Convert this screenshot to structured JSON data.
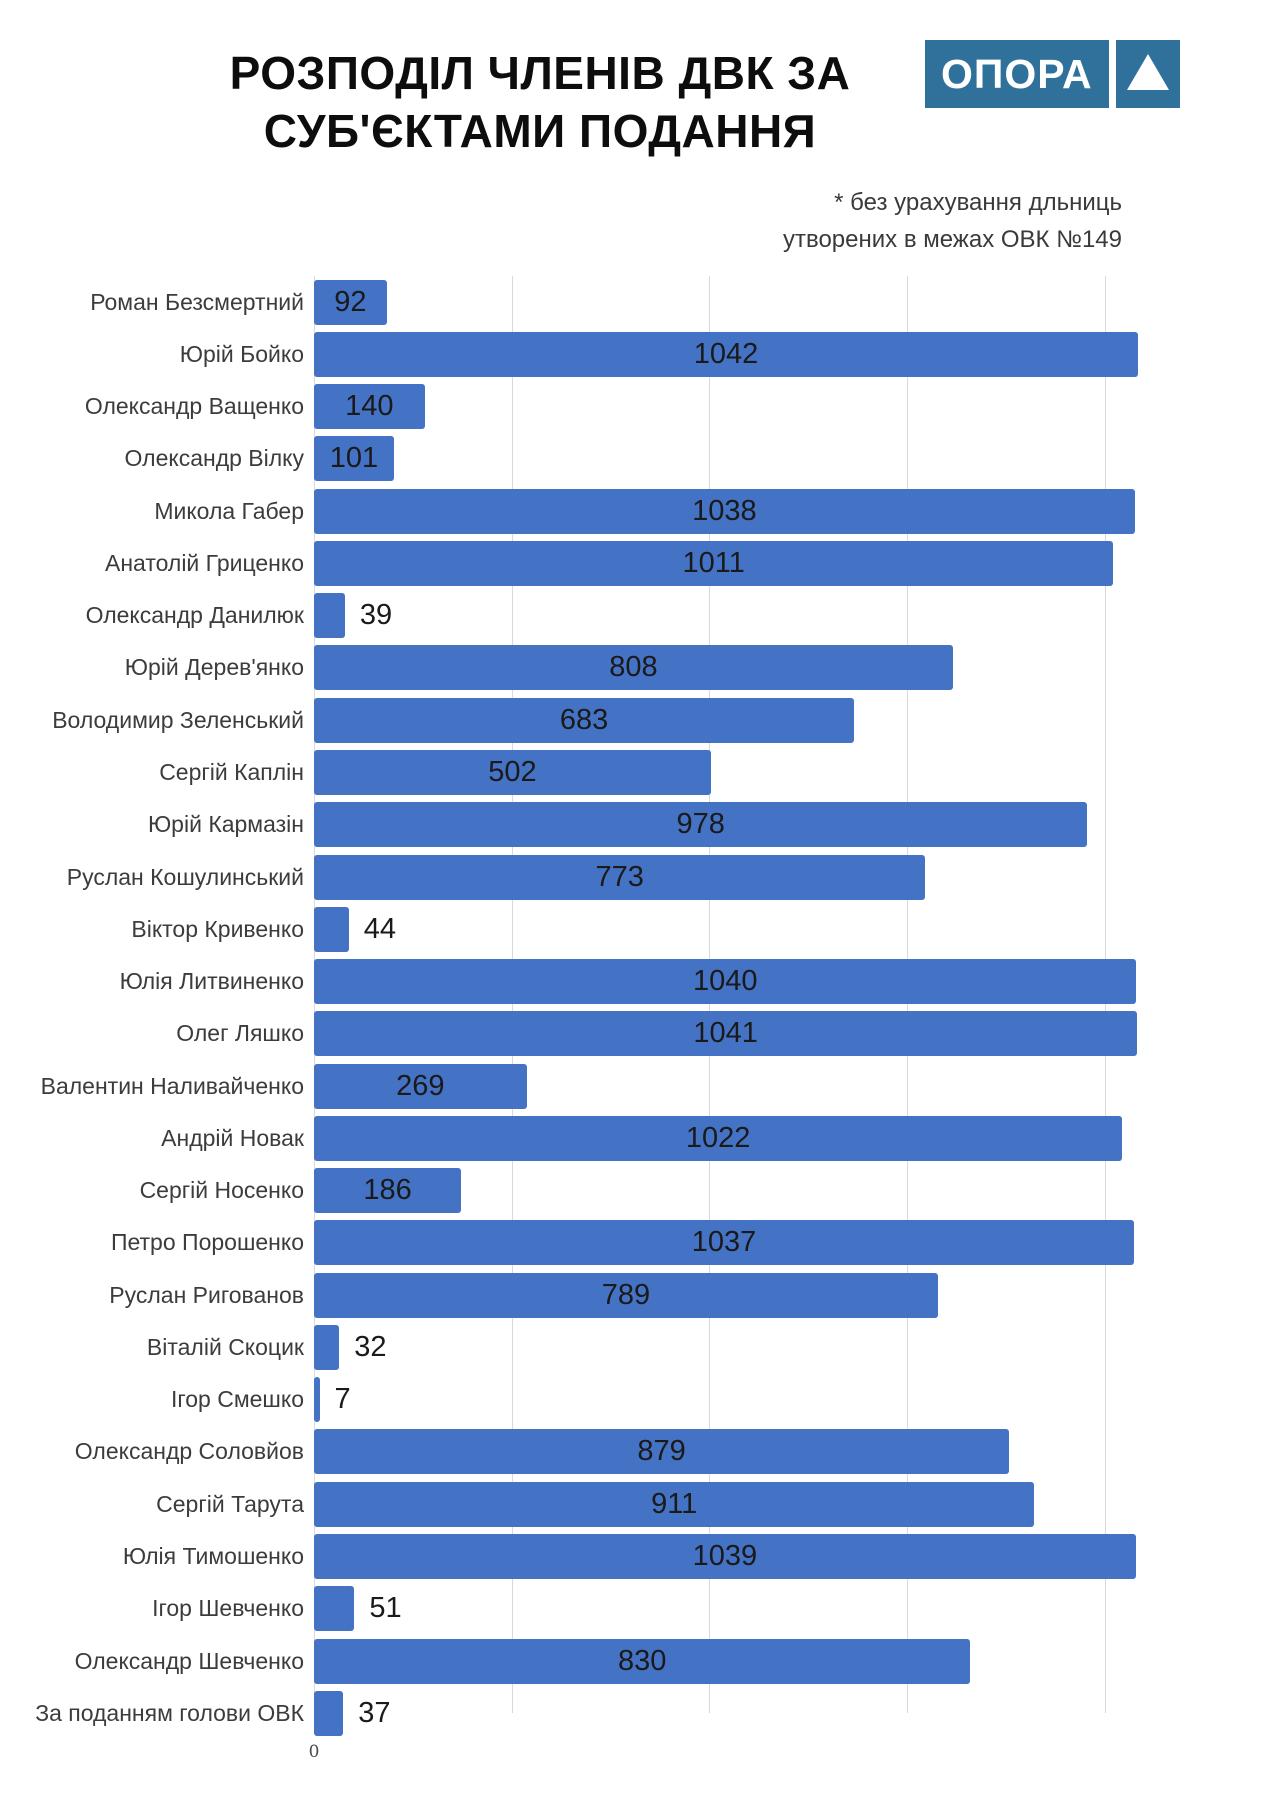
{
  "title": {
    "line1": "РОЗПОДІЛ ЧЛЕНІВ ДВК ЗА",
    "line2": "СУБ'ЄКТАМИ ПОДАННЯ"
  },
  "logo": {
    "text": "ОПОРА",
    "color": "#30719c"
  },
  "note": {
    "line1": "* без урахування дльниць",
    "line2": "утворених в межах ОВК №149"
  },
  "axis": {
    "zero_label": "0"
  },
  "chart_data": {
    "type": "bar",
    "orientation": "horizontal",
    "title": "РОЗПОДІЛ ЧЛЕНІВ ДВК ЗА СУБ'ЄКТАМИ ПОДАННЯ",
    "subtitle": "* без урахування дльниць утворених в межах ОВК №149",
    "categories": [
      "Роман Безсмертний",
      "Юрій Бойко",
      "Олександр Ващенко",
      "Олександр Вілку",
      "Микола Габер",
      "Анатолій Гриценко",
      "Олександр Данилюк",
      "Юрій Дерев'янко",
      "Володимир Зеленський",
      "Сергій Каплін",
      "Юрій Кармазін",
      "Руслан Кошулинський",
      "Віктор Кривенко",
      "Юлія Литвиненко",
      "Олег Ляшко",
      "Валентин Наливайченко",
      "Андрій Новак",
      "Сергій Носенко",
      "Петро Порошенко",
      "Руслан Ригованов",
      "Віталій Скоцик",
      "Ігор Смешко",
      "Олександр Соловйов",
      "Сергій Тарута",
      "Юлія Тимошенко",
      "Ігор Шевченко",
      "Олександр Шевченко",
      "За поданням голови ОВК"
    ],
    "values": [
      92,
      1042,
      140,
      101,
      1038,
      1011,
      39,
      808,
      683,
      502,
      978,
      773,
      44,
      1040,
      1041,
      269,
      1022,
      186,
      1037,
      789,
      32,
      7,
      879,
      911,
      1039,
      51,
      830,
      37
    ],
    "xlim": [
      0,
      1042
    ],
    "gridline_values": [
      0,
      250,
      500,
      750,
      1000
    ],
    "grid": true,
    "legend": "none",
    "bar_color": "#4472c4",
    "value_labels_shown": true
  }
}
